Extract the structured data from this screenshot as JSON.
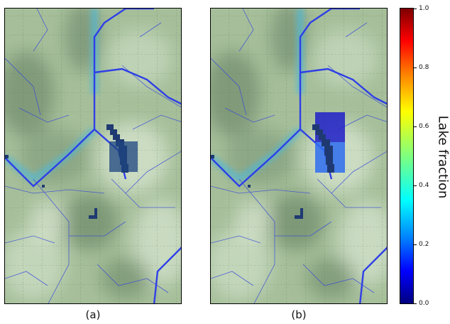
{
  "panels": [
    {
      "caption": "(a)"
    },
    {
      "caption": "(b)"
    }
  ],
  "colorbar": {
    "label": "Lake fraction",
    "ticks": [
      "0.0",
      "0.2",
      "0.4",
      "0.6",
      "0.8",
      "1.0"
    ],
    "range": [
      0.0,
      1.0
    ],
    "colormap": "jet"
  },
  "colors": {
    "terrain_base": "#a6bf9a",
    "terrain_dark": "#5f7a5f",
    "terrain_light": "#dfe9d8",
    "river": "#2f3fe6",
    "river_glow": "#4db8d8",
    "lake": "#1f3a72",
    "lake_fraction_high": "#1e1ec8",
    "lake_fraction_low": "#2e6cf0"
  }
}
